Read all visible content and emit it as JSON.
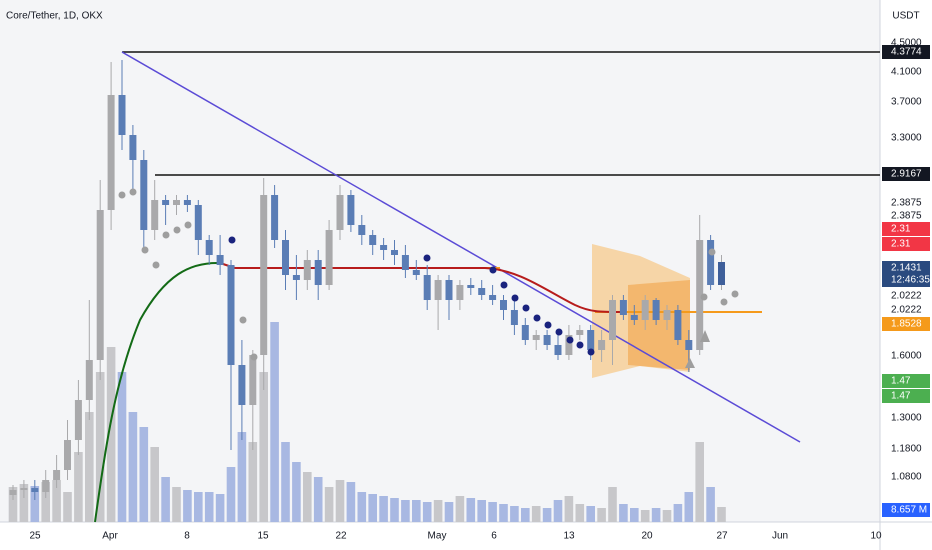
{
  "header": {
    "title": "Core/Tether, 1D, OKX"
  },
  "price_axis": {
    "currency": "USDT",
    "labels": [
      "4.5000",
      "4.1000",
      "3.7000",
      "3.3000",
      "2.3875",
      "2.3875",
      "1.6000",
      "1.3000",
      "1.1800",
      "1.0800"
    ]
  },
  "time_axis": {
    "labels": [
      "25",
      "Apr",
      "8",
      "15",
      "22",
      "May",
      "6",
      "13",
      "20",
      "27",
      "Jun",
      "10"
    ]
  },
  "price_tags": {
    "high": "4.3774",
    "resistance": "2.9167",
    "red_1": "2.31",
    "red_2": "2.31",
    "last": "2.1431",
    "countdown": "12:46:35",
    "mid_1": "2.0222",
    "mid_2": "2.0222",
    "orange": "1.8528",
    "green_1": "1.47",
    "green_2": "1.47",
    "volume": "8.657 M"
  }
}
